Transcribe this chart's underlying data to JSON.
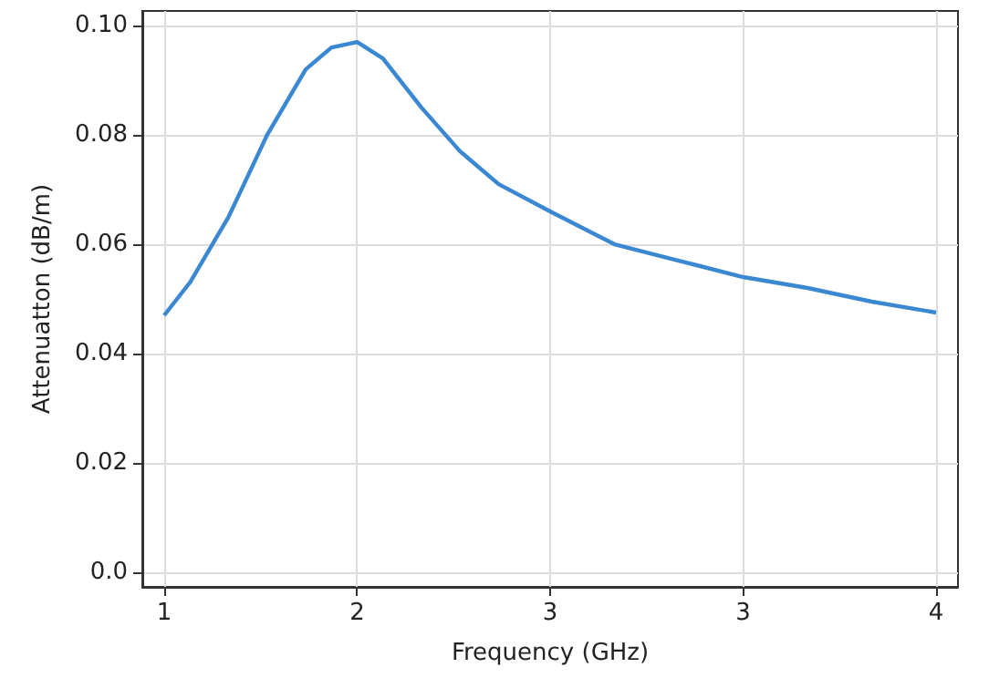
{
  "chart_data": {
    "type": "line",
    "xlabel": "Frequency (GHz)",
    "ylabel": "Attenuatton (dB/m)",
    "x": [
      1,
      1.1,
      1.25,
      1.4,
      1.55,
      1.65,
      1.75,
      1.85,
      2,
      2.15,
      2.3,
      2.5,
      2.75,
      3,
      3.25,
      3.5,
      3.75,
      4
    ],
    "series": [
      {
        "color": "#3a87d2",
        "values": [
          0.047,
          0.053,
          0.065,
          0.08,
          0.092,
          0.096,
          0.097,
          0.094,
          0.085,
          0.077,
          0.071,
          0.066,
          0.06,
          0.057,
          0.054,
          0.052,
          0.0495,
          0.0475
        ]
      }
    ],
    "xlim": [
      0.915,
      4.085
    ],
    "xticks": [
      1,
      {
        "value": 1.75,
        "label": "2"
      },
      {
        "value": 2.5,
        "label": "3"
      },
      {
        "value": 3.25,
        "label": "3"
      },
      4
    ],
    "ylim": [
      -0.0027,
      0.1027
    ],
    "yticks": [
      {
        "value": 0,
        "label": "0.0"
      },
      {
        "value": 0.02,
        "label": "0.02"
      },
      {
        "value": 0.04,
        "label": "0.04"
      },
      {
        "value": 0.06,
        "label": "0.06"
      },
      {
        "value": 0.08,
        "label": "0.08"
      },
      {
        "value": 0.1,
        "label": "0.10"
      }
    ],
    "grid": true,
    "marker": "none",
    "line_style": "solid"
  }
}
